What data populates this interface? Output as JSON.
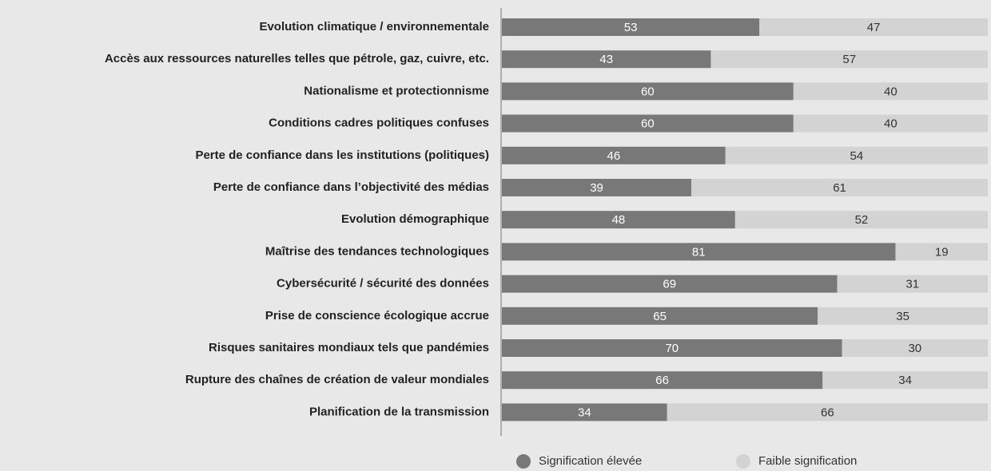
{
  "chart_data": {
    "type": "stacked-bar",
    "categories": [
      "Evolution climatique / environnementale",
      "Accès aux ressources naturelles telles que pétrole, gaz, cuivre, etc.",
      "Nationalisme et protectionnisme",
      "Conditions cadres politiques confuses",
      "Perte de confiance dans les institutions (politiques)",
      "Perte de confiance dans l’objectivité des médias",
      "Evolution démographique",
      "Maîtrise des tendances technologiques",
      "Cybersécurité / sécurité des données",
      "Prise de conscience écologique accrue",
      "Risques sanitaires mondiaux tels que pandémies",
      "Rupture des chaînes de création de valeur mondiales",
      "Planification de la transmission"
    ],
    "series": [
      {
        "name": "Signification élevée",
        "color": "#787878",
        "values": [
          53,
          43,
          60,
          60,
          46,
          39,
          48,
          81,
          69,
          65,
          70,
          66,
          34
        ]
      },
      {
        "name": "Faible signification",
        "color": "#d3d3d3",
        "values": [
          47,
          57,
          40,
          40,
          54,
          61,
          52,
          19,
          31,
          35,
          30,
          34,
          66
        ]
      }
    ],
    "xlim": [
      0,
      100
    ],
    "legend": "bottom"
  }
}
